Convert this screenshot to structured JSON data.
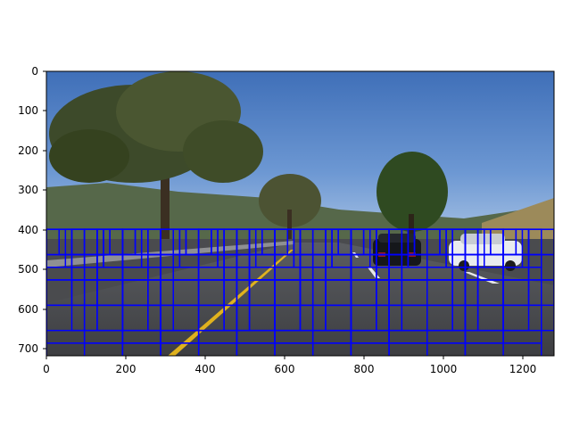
{
  "figure": {
    "x_ticks": [
      "0",
      "200",
      "400",
      "600",
      "800",
      "1000",
      "1200"
    ],
    "y_ticks": [
      "0",
      "100",
      "200",
      "300",
      "400",
      "500",
      "600",
      "700"
    ],
    "xlim": [
      0,
      1280
    ],
    "ylim": [
      720,
      0
    ],
    "box_color": "#0000ff",
    "image_description": "highway-road-scene-with-trees-and-two-cars",
    "window_sets": [
      {
        "size": 64,
        "y_start": 400,
        "y_end": 464,
        "overlap": 0.5,
        "x_start": 0,
        "x_end": 1280
      },
      {
        "size": 96,
        "y_start": 400,
        "y_end": 496,
        "overlap": 0.5,
        "x_start": 0,
        "x_end": 1280
      },
      {
        "size": 128,
        "y_start": 400,
        "y_end": 656,
        "overlap": 0.5,
        "x_start": 0,
        "x_end": 1280
      },
      {
        "size": 192,
        "y_start": 400,
        "y_end": 784,
        "overlap": 0.5,
        "x_start": 0,
        "x_end": 1280
      }
    ]
  }
}
